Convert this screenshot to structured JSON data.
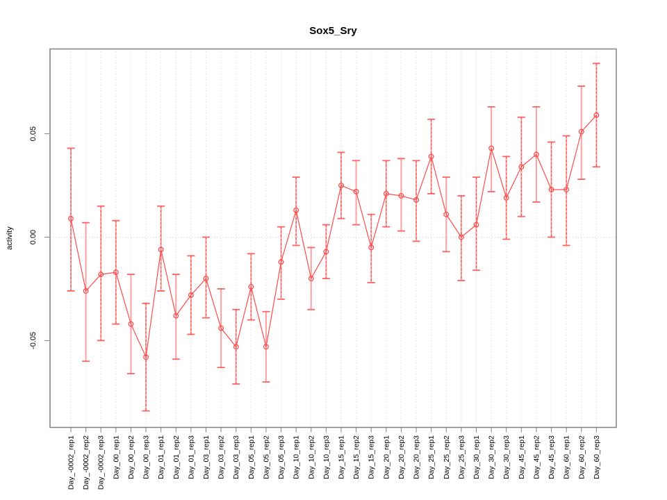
{
  "page": {
    "background": "#ffffff"
  },
  "chart_data": {
    "type": "line",
    "title": "Sox5_Sry",
    "xlabel": "",
    "ylabel": "activity",
    "error_bars": true,
    "legend": "none",
    "grid": "vertical dotted per category + dotted zero line",
    "ylim": [
      -0.092,
      0.091
    ],
    "y_ticks": {
      "values": [
        -0.05,
        0.0,
        0.05
      ],
      "labels": [
        "-0.05",
        "0.00",
        "0.05"
      ]
    },
    "categories": [
      "Day_-0002_rep1",
      "Day_-0002_rep2",
      "Day_-0002_rep3",
      "Day_00_rep1",
      "Day_00_rep2",
      "Day_00_rep3",
      "Day_01_rep1",
      "Day_01_rep2",
      "Day_01_rep3",
      "Day_03_rep1",
      "Day_03_rep2",
      "Day_03_rep3",
      "Day_05_rep1",
      "Day_05_rep2",
      "Day_05_rep3",
      "Day_10_rep1",
      "Day_10_rep2",
      "Day_10_rep3",
      "Day_15_rep1",
      "Day_15_rep2",
      "Day_15_rep3",
      "Day_20_rep1",
      "Day_20_rep2",
      "Day_20_rep3",
      "Day_25_rep1",
      "Day_25_rep2",
      "Day_25_rep3",
      "Day_30_rep1",
      "Day_30_rep2",
      "Day_30_rep3",
      "Day_45_rep1",
      "Day_45_rep2",
      "Day_45_rep3",
      "Day_60_rep1",
      "Day_60_rep2",
      "Day_60_rep3"
    ],
    "series": [
      {
        "name": "activity",
        "values": [
          0.009,
          -0.026,
          -0.018,
          -0.017,
          -0.042,
          -0.058,
          -0.006,
          -0.038,
          -0.028,
          -0.02,
          -0.044,
          -0.053,
          -0.024,
          -0.053,
          -0.012,
          0.013,
          -0.02,
          -0.007,
          0.025,
          0.022,
          -0.005,
          0.021,
          0.02,
          0.018,
          0.039,
          0.011,
          0.0,
          0.006,
          0.043,
          0.019,
          0.034,
          0.04,
          0.023,
          0.023,
          0.051,
          0.059
        ],
        "lower": [
          -0.026,
          -0.06,
          -0.05,
          -0.042,
          -0.066,
          -0.084,
          -0.026,
          -0.059,
          -0.047,
          -0.039,
          -0.063,
          -0.071,
          -0.04,
          -0.07,
          -0.03,
          -0.004,
          -0.035,
          -0.02,
          0.009,
          0.006,
          -0.022,
          0.005,
          0.003,
          -0.002,
          0.021,
          -0.007,
          -0.021,
          -0.016,
          0.022,
          -0.001,
          0.01,
          0.017,
          0.0,
          -0.004,
          0.028,
          0.034
        ],
        "upper": [
          0.043,
          0.007,
          0.015,
          0.008,
          -0.018,
          -0.032,
          0.015,
          -0.018,
          -0.009,
          0.0,
          -0.025,
          -0.035,
          -0.008,
          -0.036,
          0.005,
          0.029,
          -0.005,
          0.006,
          0.041,
          0.037,
          0.011,
          0.037,
          0.038,
          0.037,
          0.057,
          0.029,
          0.02,
          0.029,
          0.063,
          0.039,
          0.058,
          0.063,
          0.046,
          0.049,
          0.073,
          0.084
        ]
      }
    ],
    "colors": {
      "series": "#ff4a4a",
      "error_bar_stem": "#ffa0a0",
      "error_bar_dash": "#f24444",
      "error_bar_cap": "#ff6060",
      "grid": "#cfcfcf",
      "frame": "#808080",
      "tick": "#808080",
      "text": "#000000",
      "background": "#ffffff"
    }
  }
}
